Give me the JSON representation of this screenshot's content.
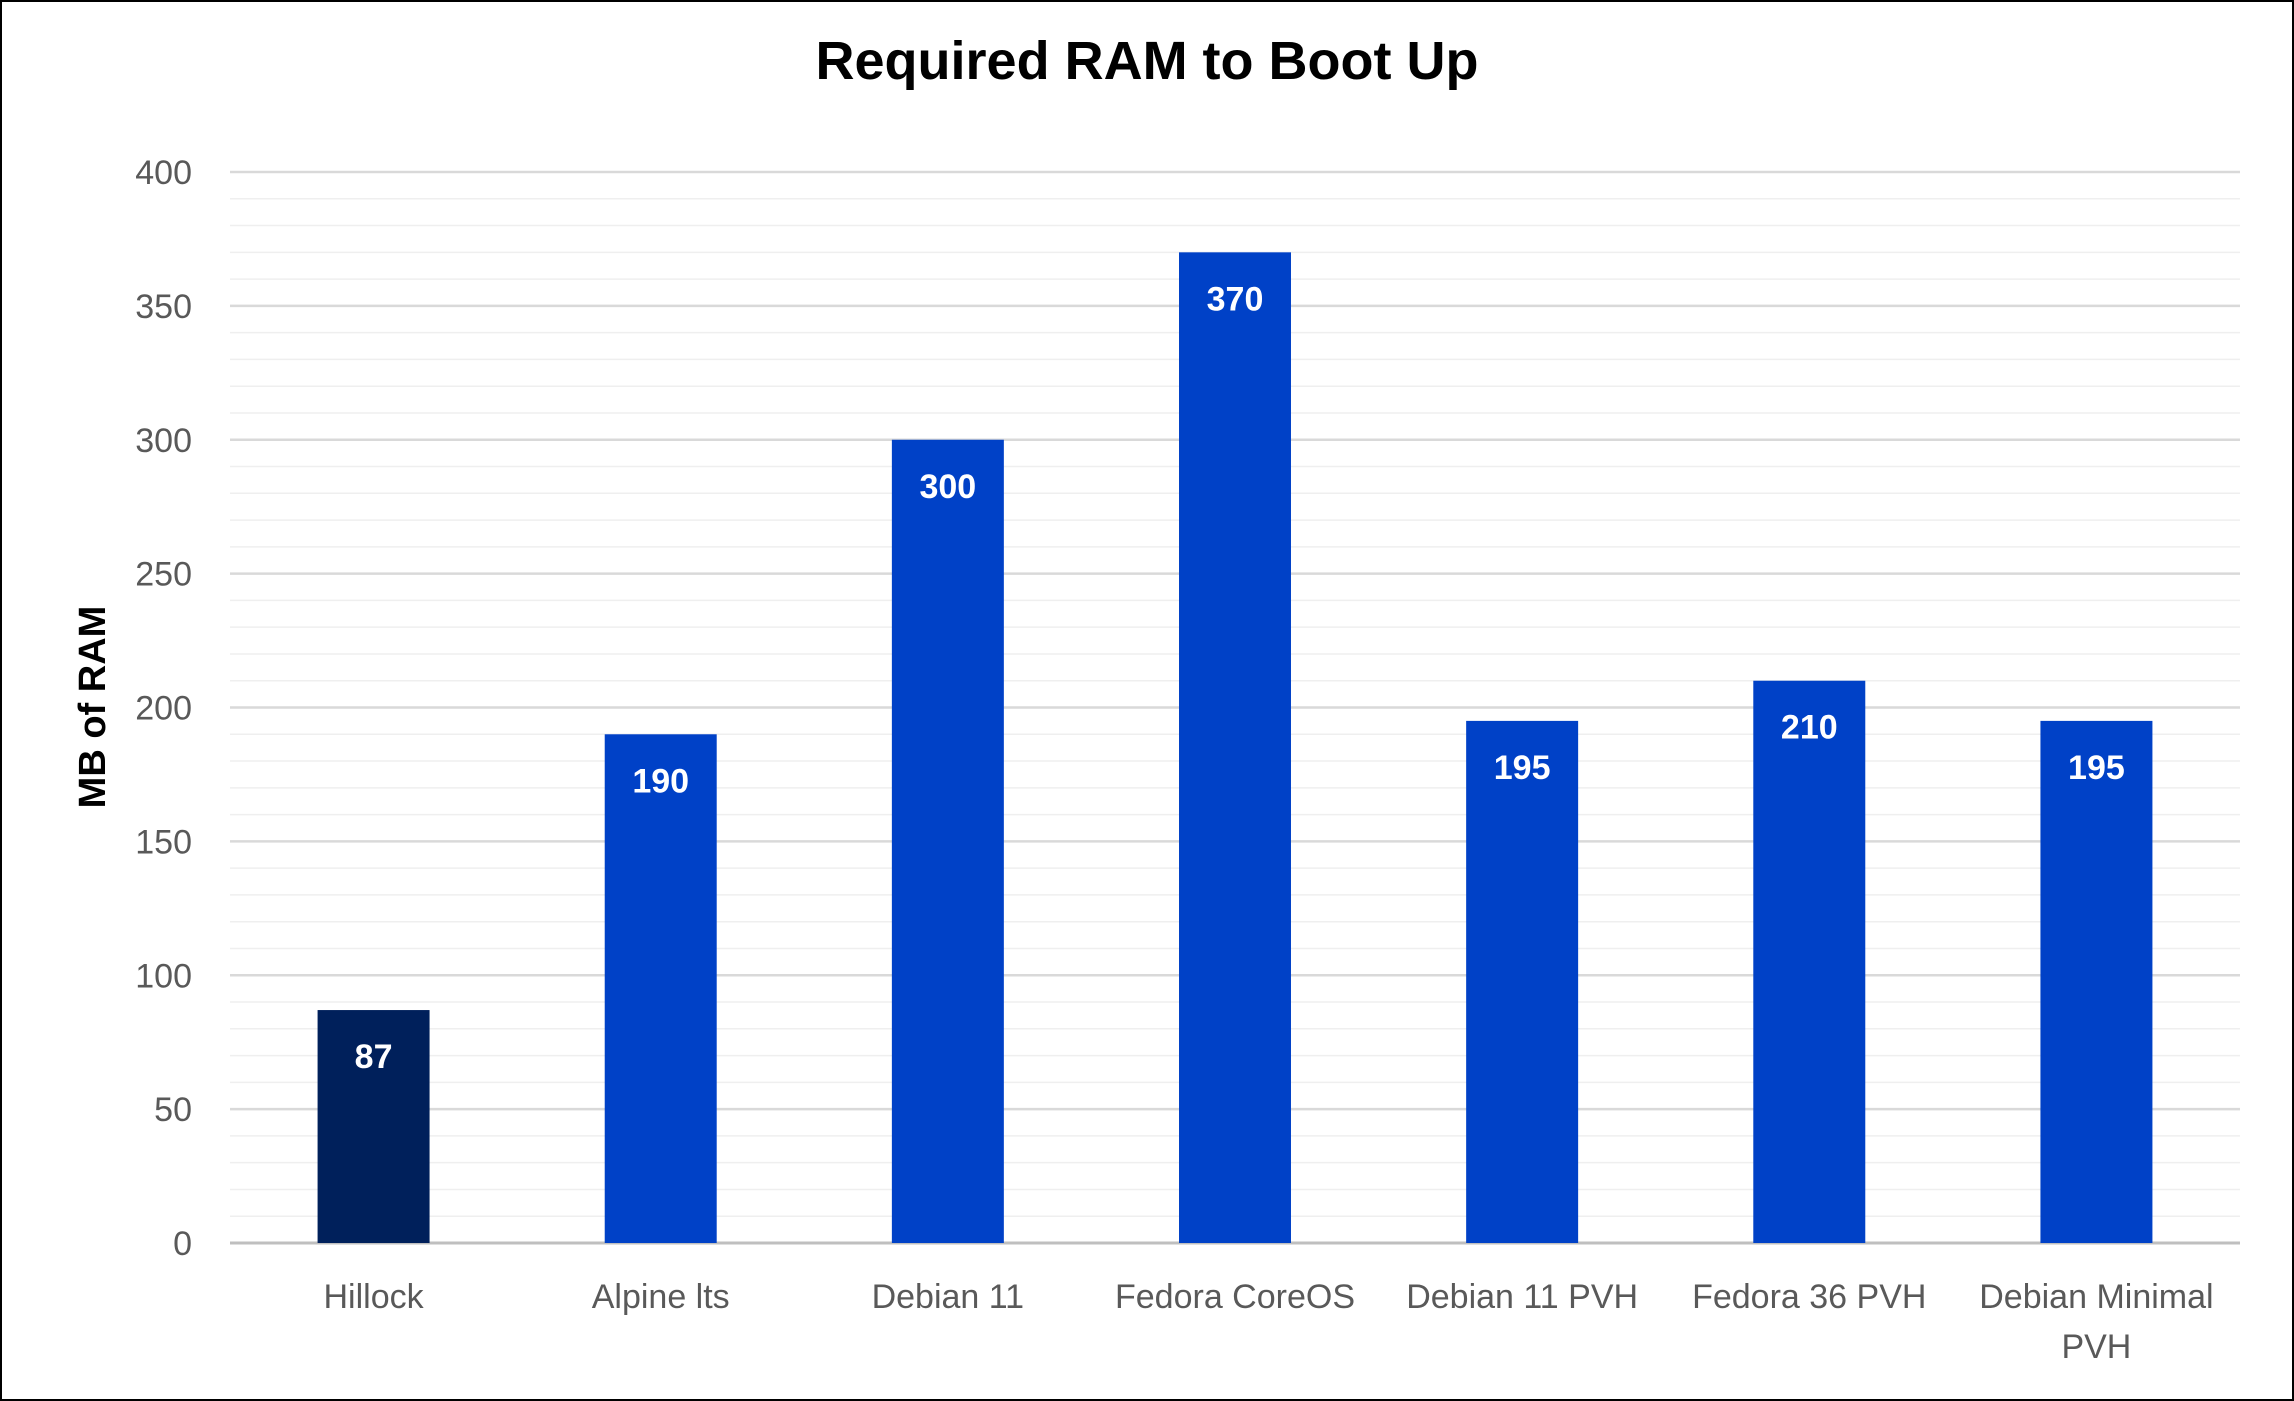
{
  "chart_data": {
    "type": "bar",
    "title": "Required RAM to Boot Up",
    "xlabel": "",
    "ylabel": "MB of RAM",
    "categories": [
      [
        "Hillock"
      ],
      [
        "Alpine lts"
      ],
      [
        "Debian 11"
      ],
      [
        "Fedora CoreOS"
      ],
      [
        "Debian 11 PVH"
      ],
      [
        "Fedora 36 PVH"
      ],
      [
        "Debian Minimal",
        "PVH"
      ]
    ],
    "values": [
      87,
      190,
      300,
      370,
      195,
      210,
      195
    ],
    "data_labels": [
      "87",
      "190",
      "300",
      "370",
      "195",
      "210",
      "195"
    ],
    "bar_colors": [
      "#00205B",
      "#0041C7",
      "#0041C7",
      "#0041C7",
      "#0041C7",
      "#0041C7",
      "#0041C7"
    ],
    "ylim": [
      0,
      400
    ],
    "yticks": [
      0,
      50,
      100,
      150,
      200,
      250,
      300,
      350,
      400
    ],
    "minor_grid_step": 10,
    "grid": true,
    "legend": "none"
  }
}
